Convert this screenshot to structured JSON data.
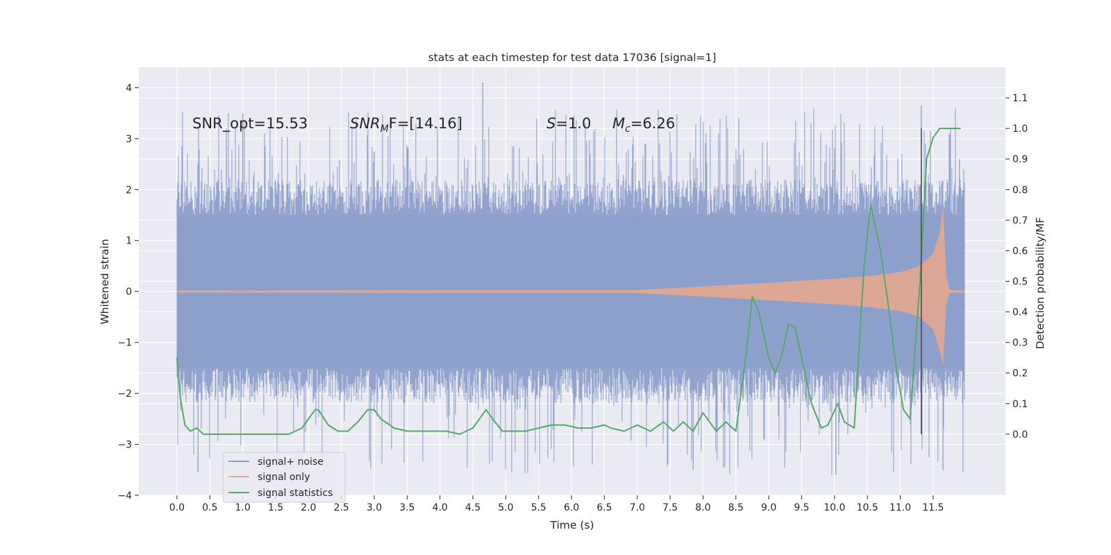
{
  "chart_data": {
    "type": "line",
    "title": "stats at each timestep for test data 17036 [signal=1]",
    "xlabel": "Time (s)",
    "ylabel": "Whitened strain",
    "ylabel_right": "Detection probability/MF",
    "xlim": [
      -0.58,
      12.6
    ],
    "ylim": [
      -4.0,
      4.4
    ],
    "ylim_right": [
      -0.2,
      1.2
    ],
    "x_ticks": [
      "0.0",
      "0.5",
      "1.0",
      "1.5",
      "2.0",
      "2.5",
      "3.0",
      "3.5",
      "4.0",
      "4.5",
      "5.0",
      "5.5",
      "6.0",
      "6.5",
      "7.0",
      "7.5",
      "8.0",
      "8.5",
      "9.0",
      "9.5",
      "10.0",
      "10.5",
      "11.0",
      "11.5"
    ],
    "y_ticks": [
      "4",
      "3",
      "2",
      "1",
      "0",
      "−1",
      "−2",
      "−3",
      "−4"
    ],
    "y_ticks_right": [
      "1.1",
      "1.0",
      "0.9",
      "0.8",
      "0.7",
      "0.6",
      "0.5",
      "0.4",
      "0.3",
      "0.2",
      "0.1",
      "0.0"
    ],
    "grid": true,
    "legend_position": "lower left",
    "annotations": {
      "snr_opt": "SNR_opt=15.53",
      "snr_mf": "SNR",
      "snr_mf_sub": "M",
      "snr_mf_rest": "F=[14.16]",
      "s_symbol": "S",
      "s_value": "=1.0",
      "mc_symbol": "M",
      "mc_sub": "c",
      "mc_value": "=6.26"
    },
    "marker_x": 11.32,
    "series": [
      {
        "name": "signal+ noise",
        "color": "#8da0cb",
        "x_range": [
          0.0,
          11.98
        ],
        "band_low": -1.5,
        "band_high": 1.5,
        "peak_max": 4.1,
        "peak_min": -3.6
      },
      {
        "name": "signal only",
        "color": "#e5a78f",
        "envelope_x": [
          0.0,
          7.0,
          8.0,
          9.0,
          10.0,
          10.5,
          11.0,
          11.3,
          11.5,
          11.6,
          11.65,
          11.7,
          11.75,
          11.98
        ],
        "envelope_amp": [
          0.02,
          0.03,
          0.1,
          0.17,
          0.25,
          0.3,
          0.38,
          0.5,
          0.75,
          1.15,
          1.7,
          0.3,
          0.03,
          0.02
        ]
      },
      {
        "name": "signal statistics",
        "color": "#55a868",
        "x": [
          0.0,
          0.05,
          0.12,
          0.2,
          0.3,
          0.4,
          0.5,
          0.7,
          0.9,
          1.1,
          1.3,
          1.5,
          1.7,
          1.9,
          2.0,
          2.1,
          2.15,
          2.3,
          2.45,
          2.6,
          2.75,
          2.9,
          3.0,
          3.1,
          3.3,
          3.5,
          3.7,
          3.9,
          4.1,
          4.3,
          4.5,
          4.7,
          4.8,
          4.95,
          5.1,
          5.3,
          5.5,
          5.7,
          5.9,
          6.1,
          6.3,
          6.5,
          6.6,
          6.8,
          7.0,
          7.2,
          7.4,
          7.55,
          7.7,
          7.85,
          8.0,
          8.2,
          8.35,
          8.5,
          8.65,
          8.75,
          8.85,
          9.0,
          9.1,
          9.2,
          9.3,
          9.4,
          9.5,
          9.65,
          9.8,
          9.9,
          10.05,
          10.15,
          10.3,
          10.45,
          10.55,
          10.7,
          10.8,
          10.95,
          11.05,
          11.15,
          11.3,
          11.4,
          11.5,
          11.6,
          11.8,
          11.92
        ],
        "y": [
          0.25,
          0.12,
          0.03,
          0.01,
          0.02,
          0.0,
          0.0,
          0.0,
          0.0,
          0.0,
          0.0,
          0.0,
          0.0,
          0.02,
          0.05,
          0.08,
          0.08,
          0.03,
          0.01,
          0.01,
          0.04,
          0.08,
          0.08,
          0.05,
          0.02,
          0.01,
          0.01,
          0.01,
          0.01,
          0.0,
          0.02,
          0.08,
          0.05,
          0.01,
          0.01,
          0.01,
          0.02,
          0.03,
          0.03,
          0.02,
          0.02,
          0.03,
          0.02,
          0.01,
          0.03,
          0.01,
          0.04,
          0.01,
          0.04,
          0.01,
          0.07,
          0.01,
          0.04,
          0.01,
          0.25,
          0.45,
          0.4,
          0.25,
          0.2,
          0.26,
          0.36,
          0.35,
          0.25,
          0.1,
          0.02,
          0.03,
          0.1,
          0.04,
          0.02,
          0.55,
          0.75,
          0.6,
          0.45,
          0.2,
          0.08,
          0.05,
          0.5,
          0.9,
          0.97,
          1.0,
          1.0,
          1.0
        ]
      }
    ]
  }
}
